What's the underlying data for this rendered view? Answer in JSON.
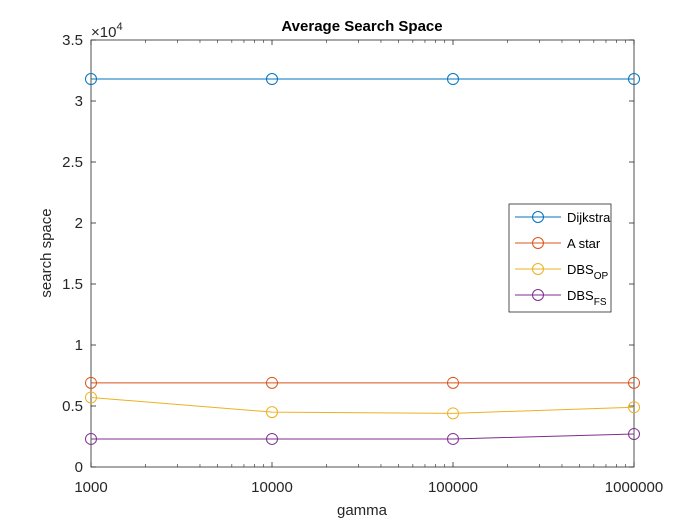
{
  "chart_data": {
    "type": "line",
    "title": "Average Search Space",
    "xlabel": "gamma",
    "ylabel": "search space",
    "x_scale": "log",
    "x": [
      1000,
      10000,
      100000,
      1000000
    ],
    "x_tick_labels": [
      "1000",
      "10000",
      "100000",
      "1000000"
    ],
    "y_tick_labels": [
      "0",
      "0.5",
      "1",
      "1.5",
      "2",
      "2.5",
      "3",
      "3.5"
    ],
    "y_tick_values": [
      0,
      5000,
      10000,
      15000,
      20000,
      25000,
      30000,
      35000
    ],
    "y_exponent_label": "×10",
    "y_exponent_power": "4",
    "ylim": [
      0,
      35000
    ],
    "xlim": [
      1000,
      1000000
    ],
    "grid": false,
    "legend_position": "right",
    "marker": "circle",
    "series": [
      {
        "name": "Dijkstra",
        "name_main": "Dijkstra",
        "name_sub": "",
        "color": "#0072BD",
        "values": [
          31800,
          31800,
          31800,
          31800
        ]
      },
      {
        "name": "A star",
        "name_main": "A star",
        "name_sub": "",
        "color": "#D95319",
        "values": [
          6900,
          6900,
          6900,
          6900
        ]
      },
      {
        "name": "DBSOP",
        "name_main": "DBS",
        "name_sub": "OP",
        "color": "#EDB120",
        "values": [
          5700,
          4500,
          4400,
          4900
        ]
      },
      {
        "name": "DBSFS",
        "name_main": "DBS",
        "name_sub": "FS",
        "color": "#7E2F8E",
        "values": [
          2300,
          2300,
          2300,
          2700
        ]
      }
    ]
  }
}
